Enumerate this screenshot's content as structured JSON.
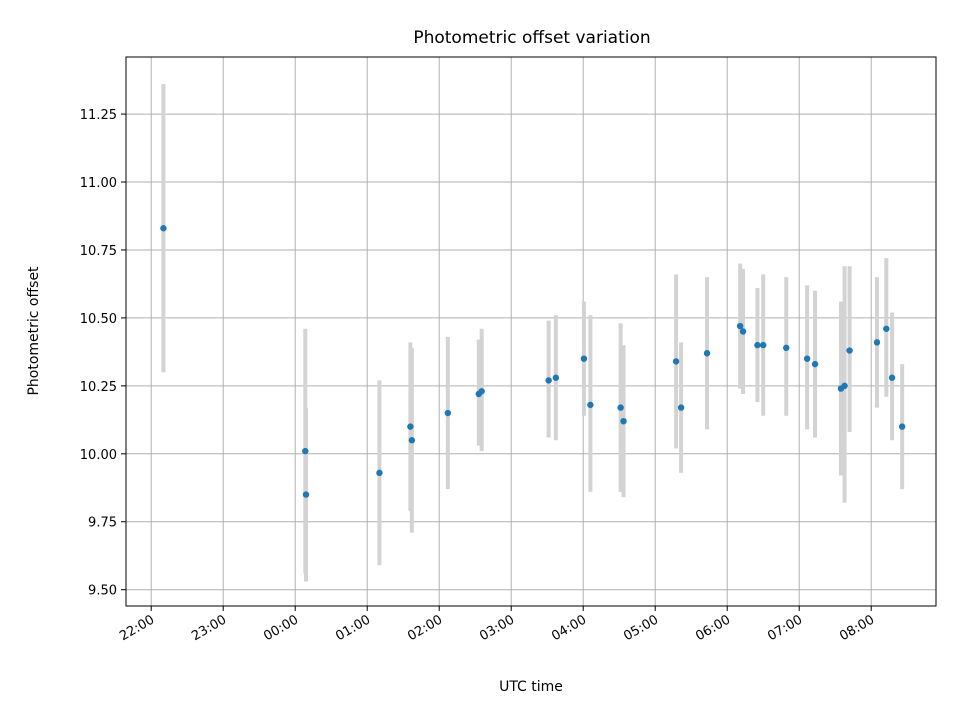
{
  "chart_data": {
    "type": "scatter",
    "title": "Photometric offset variation",
    "xlabel": "UTC time",
    "ylabel": "Photometric offset",
    "grid": true,
    "x_unit": "hours after 22:00",
    "xlim": [
      -0.35,
      10.9
    ],
    "ylim": [
      9.44,
      11.46
    ],
    "x_ticks": [
      {
        "value": 0,
        "label": "22:00"
      },
      {
        "value": 1,
        "label": "23:00"
      },
      {
        "value": 2,
        "label": "00:00"
      },
      {
        "value": 3,
        "label": "01:00"
      },
      {
        "value": 4,
        "label": "02:00"
      },
      {
        "value": 5,
        "label": "03:00"
      },
      {
        "value": 6,
        "label": "04:00"
      },
      {
        "value": 7,
        "label": "05:00"
      },
      {
        "value": 8,
        "label": "06:00"
      },
      {
        "value": 9,
        "label": "07:00"
      },
      {
        "value": 10,
        "label": "08:00"
      }
    ],
    "y_ticks": [
      {
        "value": 9.5,
        "label": "9.50"
      },
      {
        "value": 9.75,
        "label": "9.75"
      },
      {
        "value": 10.0,
        "label": "10.00"
      },
      {
        "value": 10.25,
        "label": "10.25"
      },
      {
        "value": 10.5,
        "label": "10.50"
      },
      {
        "value": 10.75,
        "label": "10.75"
      },
      {
        "value": 11.0,
        "label": "11.00"
      },
      {
        "value": 11.25,
        "label": "11.25"
      }
    ],
    "marker_color": "#1f77b4",
    "errorbar_color": "#d3d3d3",
    "points": [
      {
        "x": 0.17,
        "y": 10.83,
        "ymin": 10.3,
        "ymax": 11.36
      },
      {
        "x": 2.14,
        "y": 10.01,
        "ymin": 9.56,
        "ymax": 10.46
      },
      {
        "x": 2.15,
        "y": 9.85,
        "ymin": 9.53,
        "ymax": 10.17
      },
      {
        "x": 3.17,
        "y": 9.93,
        "ymin": 9.59,
        "ymax": 10.27
      },
      {
        "x": 3.6,
        "y": 10.1,
        "ymin": 9.79,
        "ymax": 10.41
      },
      {
        "x": 3.62,
        "y": 10.05,
        "ymin": 9.71,
        "ymax": 10.39
      },
      {
        "x": 4.12,
        "y": 10.15,
        "ymin": 9.87,
        "ymax": 10.43
      },
      {
        "x": 4.55,
        "y": 10.22,
        "ymin": 10.03,
        "ymax": 10.42
      },
      {
        "x": 4.59,
        "y": 10.23,
        "ymin": 10.01,
        "ymax": 10.46
      },
      {
        "x": 5.52,
        "y": 10.27,
        "ymin": 10.06,
        "ymax": 10.49
      },
      {
        "x": 5.62,
        "y": 10.28,
        "ymin": 10.05,
        "ymax": 10.51
      },
      {
        "x": 6.01,
        "y": 10.35,
        "ymin": 10.14,
        "ymax": 10.56
      },
      {
        "x": 6.1,
        "y": 10.18,
        "ymin": 9.86,
        "ymax": 10.51
      },
      {
        "x": 6.52,
        "y": 10.17,
        "ymin": 9.86,
        "ymax": 10.48
      },
      {
        "x": 6.56,
        "y": 10.12,
        "ymin": 9.84,
        "ymax": 10.4
      },
      {
        "x": 7.29,
        "y": 10.34,
        "ymin": 10.02,
        "ymax": 10.66
      },
      {
        "x": 7.36,
        "y": 10.17,
        "ymin": 9.93,
        "ymax": 10.41
      },
      {
        "x": 7.72,
        "y": 10.37,
        "ymin": 10.09,
        "ymax": 10.65
      },
      {
        "x": 8.18,
        "y": 10.47,
        "ymin": 10.24,
        "ymax": 10.7
      },
      {
        "x": 8.22,
        "y": 10.45,
        "ymin": 10.22,
        "ymax": 10.68
      },
      {
        "x": 8.42,
        "y": 10.4,
        "ymin": 10.19,
        "ymax": 10.61
      },
      {
        "x": 8.5,
        "y": 10.4,
        "ymin": 10.14,
        "ymax": 10.66
      },
      {
        "x": 8.82,
        "y": 10.39,
        "ymin": 10.14,
        "ymax": 10.65
      },
      {
        "x": 9.11,
        "y": 10.35,
        "ymin": 10.09,
        "ymax": 10.62
      },
      {
        "x": 9.22,
        "y": 10.33,
        "ymin": 10.06,
        "ymax": 10.6
      },
      {
        "x": 9.58,
        "y": 10.24,
        "ymin": 9.92,
        "ymax": 10.56
      },
      {
        "x": 9.63,
        "y": 10.25,
        "ymin": 9.82,
        "ymax": 10.69
      },
      {
        "x": 9.7,
        "y": 10.38,
        "ymin": 10.08,
        "ymax": 10.69
      },
      {
        "x": 10.08,
        "y": 10.41,
        "ymin": 10.17,
        "ymax": 10.65
      },
      {
        "x": 10.21,
        "y": 10.46,
        "ymin": 10.21,
        "ymax": 10.72
      },
      {
        "x": 10.29,
        "y": 10.28,
        "ymin": 10.05,
        "ymax": 10.52
      },
      {
        "x": 10.43,
        "y": 10.1,
        "ymin": 9.87,
        "ymax": 10.33
      }
    ]
  }
}
